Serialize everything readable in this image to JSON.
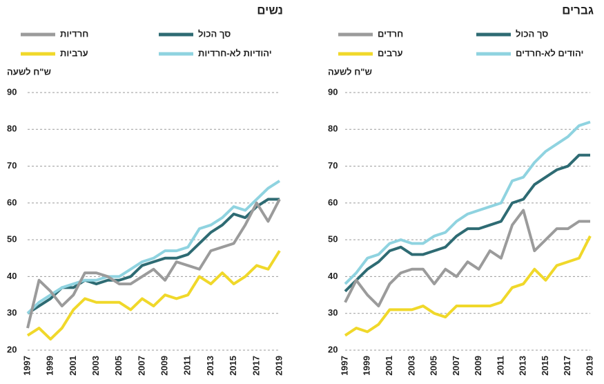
{
  "chart_data": [
    {
      "type": "line",
      "title": "גברים",
      "y_label": "ש\"ח לשעה",
      "x": [
        1997,
        1998,
        1999,
        2000,
        2001,
        2002,
        2003,
        2004,
        2005,
        2006,
        2007,
        2008,
        2009,
        2010,
        2011,
        2012,
        2013,
        2014,
        2015,
        2016,
        2017,
        2018,
        2019
      ],
      "xlim": [
        1997,
        2019
      ],
      "xticks": [
        1997,
        1999,
        2001,
        2003,
        2005,
        2007,
        2009,
        2011,
        2013,
        2015,
        2017,
        2019
      ],
      "ylim": [
        20,
        90
      ],
      "yticks": [
        20,
        30,
        40,
        50,
        60,
        70,
        80,
        90
      ],
      "grid": true,
      "series": [
        {
          "name": "סך הכול",
          "color": "#2e6b73",
          "values": [
            36,
            39,
            42,
            44,
            47,
            48,
            46,
            46,
            47,
            48,
            51,
            53,
            53,
            54,
            55,
            60,
            61,
            65,
            67,
            69,
            70,
            73,
            73
          ]
        },
        {
          "name": "יהודים לא-חרדים",
          "color": "#8fd3e0",
          "values": [
            38,
            41,
            45,
            46,
            49,
            50,
            49,
            49,
            51,
            52,
            55,
            57,
            58,
            59,
            60,
            66,
            67,
            71,
            74,
            76,
            78,
            81,
            82
          ]
        },
        {
          "name": "חרדים",
          "color": "#9b9b9b",
          "values": [
            33,
            39,
            35,
            32,
            38,
            41,
            42,
            42,
            38,
            42,
            40,
            44,
            42,
            47,
            45,
            54,
            58,
            47,
            50,
            53,
            53,
            55,
            55
          ]
        },
        {
          "name": "ערבים",
          "color": "#f0d82a",
          "values": [
            24,
            26,
            25,
            27,
            31,
            31,
            31,
            32,
            30,
            29,
            32,
            32,
            32,
            32,
            33,
            37,
            38,
            42,
            39,
            43,
            44,
            45,
            51
          ]
        }
      ]
    },
    {
      "type": "line",
      "title": "נשים",
      "y_label": "ש\"ח לשעה",
      "x": [
        1997,
        1998,
        1999,
        2000,
        2001,
        2002,
        2003,
        2004,
        2005,
        2006,
        2007,
        2008,
        2009,
        2010,
        2011,
        2012,
        2013,
        2014,
        2015,
        2016,
        2017,
        2018,
        2019
      ],
      "xlim": [
        1997,
        2019
      ],
      "xticks": [
        1997,
        1999,
        2001,
        2003,
        2005,
        2007,
        2009,
        2011,
        2013,
        2015,
        2017,
        2019
      ],
      "ylim": [
        20,
        90
      ],
      "yticks": [
        20,
        30,
        40,
        50,
        60,
        70,
        80,
        90
      ],
      "grid": true,
      "series": [
        {
          "name": "סך הכול",
          "color": "#2e6b73",
          "values": [
            30,
            32,
            34,
            37,
            37,
            39,
            38,
            39,
            39,
            40,
            43,
            44,
            45,
            45,
            46,
            49,
            52,
            54,
            57,
            56,
            59,
            61,
            61
          ]
        },
        {
          "name": "יהודיות לא-חרדיות",
          "color": "#8fd3e0",
          "values": [
            30,
            33,
            35,
            37,
            38,
            39,
            39,
            40,
            40,
            42,
            44,
            45,
            47,
            47,
            48,
            53,
            54,
            56,
            59,
            58,
            61,
            64,
            66
          ]
        },
        {
          "name": "חרדיות",
          "color": "#9b9b9b",
          "values": [
            26,
            39,
            36,
            32,
            35,
            41,
            41,
            40,
            38,
            38,
            40,
            42,
            39,
            44,
            43,
            42,
            47,
            48,
            49,
            54,
            60,
            55,
            61
          ]
        },
        {
          "name": "ערביות",
          "color": "#f0d82a",
          "values": [
            24,
            26,
            23,
            26,
            31,
            34,
            33,
            33,
            33,
            31,
            34,
            32,
            35,
            34,
            35,
            40,
            38,
            41,
            38,
            40,
            43,
            42,
            47
          ]
        }
      ]
    }
  ]
}
